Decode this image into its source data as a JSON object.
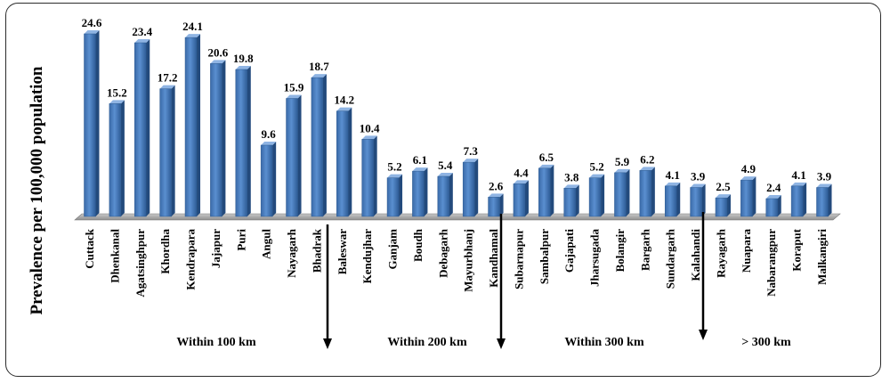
{
  "chart_data": {
    "type": "bar",
    "ylabel": "Prevalence per 100,000 population",
    "xlabel": "",
    "ylim": [
      0,
      25.5
    ],
    "grid": false,
    "categories": [
      "Cuttack",
      "Dhenkanal",
      "Agatsinghpur",
      "Khordha",
      "Kendrapara",
      "Jajapur",
      "Puri",
      "Angul",
      "Nayagarh",
      "Bhadrak",
      "Baleswar",
      "Kendujhar",
      "Ganjam",
      "Boudh",
      "Debagarh",
      "Mayurbhanj",
      "Kandhamal",
      "Subarnapur",
      "Sambalpur",
      "Gajapati",
      "Jharsugada",
      "Bolangir",
      "Bargarh",
      "Sundargarh",
      "Kalahandi",
      "Rayagarh",
      "Nuapara",
      "Nabarangpur",
      "Koraput",
      "Malkangiri"
    ],
    "values": [
      24.6,
      15.2,
      23.4,
      17.2,
      24.1,
      20.6,
      19.8,
      9.6,
      15.9,
      18.7,
      14.2,
      10.4,
      5.2,
      6.1,
      5.4,
      7.3,
      2.6,
      4.4,
      6.5,
      3.8,
      5.2,
      5.9,
      6.2,
      4.1,
      3.9,
      2.5,
      4.9,
      2.4,
      4.1,
      3.9
    ],
    "value_labels": [
      "24.6",
      "15.2",
      "23.4",
      "17.2",
      "24.1",
      "20.6",
      "19.8",
      "9.6",
      "15.9",
      "18.7",
      "14.2",
      "10.4",
      "5.2",
      "6.1",
      "5.4",
      "7.3",
      "2.6",
      "4.4",
      "6.5",
      "3.8",
      "5.2",
      "5.9",
      "6.2",
      "4.1",
      "3.9",
      "2.5",
      "4.9",
      "2.4",
      "4.1",
      "3.9"
    ],
    "bar_color": "#4a7ebb",
    "groups": [
      {
        "label": "Within 100 km"
      },
      {
        "label": "Within 200 km"
      },
      {
        "label": "Within 300 km"
      },
      {
        "label": "> 300 km"
      }
    ]
  }
}
